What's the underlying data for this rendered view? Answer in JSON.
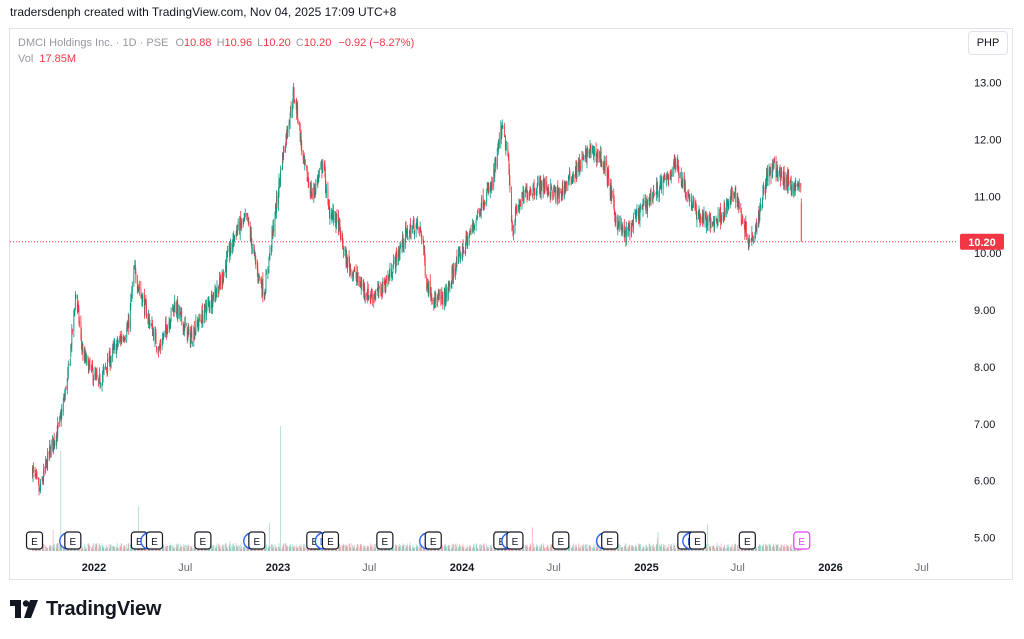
{
  "header": {
    "text": "tradersdenph created with TradingView.com, Nov 04, 2025 17:09 UTC+8"
  },
  "legend": {
    "name": "DMCI Holdings Inc. · 1D · PSE",
    "o_label": "O",
    "o_value": "10.88",
    "h_label": "H",
    "h_value": "10.96",
    "l_label": "L",
    "l_value": "10.20",
    "c_label": "C",
    "c_value": "10.20",
    "change": "−0.92 (−8.27%)",
    "vol_label": "Vol",
    "vol_value": "17.85M"
  },
  "currency_button": "PHP",
  "last_price_label": "10.20",
  "brand": {
    "name": "TradingView"
  },
  "colors": {
    "up": "#089981",
    "down": "#f23645",
    "earnings_marker": "#131722",
    "dividend_marker": "#2962ff",
    "upcoming_marker": "#e040fb"
  },
  "chart_data": {
    "type": "candlestick",
    "title": "DMCI Holdings Inc. · 1D · PSE",
    "currency": "PHP",
    "ylim": [
      4.75,
      13.1
    ],
    "y_ticks": [
      5.0,
      6.0,
      7.0,
      8.0,
      9.0,
      10.0,
      11.0,
      12.0,
      13.0
    ],
    "y_tick_labels": [
      "5.00",
      "6.00",
      "7.00",
      "8.00",
      "9.00",
      "10.00",
      "11.00",
      "12.00",
      "13.00"
    ],
    "x_range": [
      "2021-09-01",
      "2026-08-31"
    ],
    "x_ticks": [
      {
        "date": "2022-01-01",
        "label": "2022",
        "bold": true
      },
      {
        "date": "2022-07-01",
        "label": "Jul",
        "bold": false
      },
      {
        "date": "2023-01-01",
        "label": "2023",
        "bold": true
      },
      {
        "date": "2023-07-01",
        "label": "Jul",
        "bold": false
      },
      {
        "date": "2024-01-01",
        "label": "2024",
        "bold": true
      },
      {
        "date": "2024-07-01",
        "label": "Jul",
        "bold": false
      },
      {
        "date": "2025-01-01",
        "label": "2025",
        "bold": true
      },
      {
        "date": "2025-07-01",
        "label": "Jul",
        "bold": false
      },
      {
        "date": "2026-01-01",
        "label": "2026",
        "bold": true
      },
      {
        "date": "2026-07-01",
        "label": "Jul",
        "bold": false
      }
    ],
    "last_price": 10.2,
    "price_path": [
      [
        "2021-09-01",
        6.2
      ],
      [
        "2021-09-15",
        5.8
      ],
      [
        "2021-10-05",
        6.5
      ],
      [
        "2021-10-25",
        7.0
      ],
      [
        "2021-11-10",
        7.8
      ],
      [
        "2021-11-22",
        8.9
      ],
      [
        "2021-11-26",
        9.3
      ],
      [
        "2021-12-10",
        8.2
      ],
      [
        "2022-01-10",
        7.7
      ],
      [
        "2022-02-10",
        8.3
      ],
      [
        "2022-03-10",
        8.7
      ],
      [
        "2022-03-22",
        9.7
      ],
      [
        "2022-04-10",
        9.1
      ],
      [
        "2022-05-10",
        8.3
      ],
      [
        "2022-06-10",
        9.1
      ],
      [
        "2022-07-10",
        8.5
      ],
      [
        "2022-08-10",
        9.0
      ],
      [
        "2022-09-10",
        9.5
      ],
      [
        "2022-10-10",
        10.4
      ],
      [
        "2022-11-01",
        10.6
      ],
      [
        "2022-11-20",
        9.7
      ],
      [
        "2022-12-05",
        9.3
      ],
      [
        "2022-12-25",
        10.6
      ],
      [
        "2023-01-12",
        11.8
      ],
      [
        "2023-02-01",
        12.8
      ],
      [
        "2023-02-10",
        12.4
      ],
      [
        "2023-02-20",
        11.6
      ],
      [
        "2023-03-10",
        11.0
      ],
      [
        "2023-04-01",
        11.6
      ],
      [
        "2023-04-10",
        10.8
      ],
      [
        "2023-05-01",
        10.5
      ],
      [
        "2023-05-15",
        9.9
      ],
      [
        "2023-06-10",
        9.5
      ],
      [
        "2023-07-01",
        9.25
      ],
      [
        "2023-07-20",
        9.3
      ],
      [
        "2023-08-10",
        9.6
      ],
      [
        "2023-09-10",
        10.3
      ],
      [
        "2023-10-01",
        10.5
      ],
      [
        "2023-10-15",
        10.3
      ],
      [
        "2023-10-22",
        9.5
      ],
      [
        "2023-11-10",
        9.15
      ],
      [
        "2023-12-01",
        9.25
      ],
      [
        "2023-12-20",
        9.8
      ],
      [
        "2024-01-20",
        10.4
      ],
      [
        "2024-02-10",
        10.9
      ],
      [
        "2024-03-01",
        11.2
      ],
      [
        "2024-03-20",
        12.2
      ],
      [
        "2024-04-01",
        11.7
      ],
      [
        "2024-04-10",
        10.4
      ],
      [
        "2024-04-20",
        10.8
      ],
      [
        "2024-05-10",
        11.1
      ],
      [
        "2024-06-10",
        11.2
      ],
      [
        "2024-07-10",
        11.0
      ],
      [
        "2024-08-10",
        11.4
      ],
      [
        "2024-09-10",
        11.8
      ],
      [
        "2024-10-01",
        11.7
      ],
      [
        "2024-10-15",
        11.4
      ],
      [
        "2024-11-01",
        10.6
      ],
      [
        "2024-11-20",
        10.3
      ],
      [
        "2024-12-10",
        10.6
      ],
      [
        "2025-01-10",
        11.0
      ],
      [
        "2025-02-10",
        11.3
      ],
      [
        "2025-03-01",
        11.6
      ],
      [
        "2025-03-20",
        11.1
      ],
      [
        "2025-04-10",
        10.7
      ],
      [
        "2025-05-10",
        10.5
      ],
      [
        "2025-06-10",
        10.8
      ],
      [
        "2025-06-25",
        11.1
      ],
      [
        "2025-07-10",
        10.6
      ],
      [
        "2025-07-25",
        10.2
      ],
      [
        "2025-08-10",
        10.6
      ],
      [
        "2025-08-25",
        11.3
      ],
      [
        "2025-09-10",
        11.5
      ],
      [
        "2025-10-01",
        11.3
      ],
      [
        "2025-10-15",
        11.2
      ],
      [
        "2025-11-03",
        11.12
      ],
      [
        "2025-11-04",
        10.2
      ]
    ],
    "event_markers": [
      {
        "date": "2021-09-05",
        "type": "E"
      },
      {
        "date": "2021-11-10",
        "type": "D"
      },
      {
        "date": "2021-11-20",
        "type": "E"
      },
      {
        "date": "2022-04-01",
        "type": "E"
      },
      {
        "date": "2022-04-20",
        "type": "D"
      },
      {
        "date": "2022-05-01",
        "type": "E"
      },
      {
        "date": "2022-08-05",
        "type": "E"
      },
      {
        "date": "2022-11-10",
        "type": "D"
      },
      {
        "date": "2022-11-20",
        "type": "E"
      },
      {
        "date": "2023-03-15",
        "type": "E"
      },
      {
        "date": "2023-04-01",
        "type": "D"
      },
      {
        "date": "2023-04-15",
        "type": "E"
      },
      {
        "date": "2023-08-01",
        "type": "E"
      },
      {
        "date": "2023-10-25",
        "type": "D"
      },
      {
        "date": "2023-11-05",
        "type": "E"
      },
      {
        "date": "2024-03-20",
        "type": "E"
      },
      {
        "date": "2024-04-05",
        "type": "D"
      },
      {
        "date": "2024-04-15",
        "type": "E"
      },
      {
        "date": "2024-07-15",
        "type": "E"
      },
      {
        "date": "2024-10-10",
        "type": "D"
      },
      {
        "date": "2024-10-20",
        "type": "E"
      },
      {
        "date": "2025-03-20",
        "type": "E"
      },
      {
        "date": "2025-03-30",
        "type": "D"
      },
      {
        "date": "2025-04-12",
        "type": "E"
      },
      {
        "date": "2025-07-20",
        "type": "E"
      },
      {
        "date": "2025-11-05",
        "type": "E-upcoming"
      }
    ],
    "volume": {
      "last_value": "17.85M"
    }
  }
}
